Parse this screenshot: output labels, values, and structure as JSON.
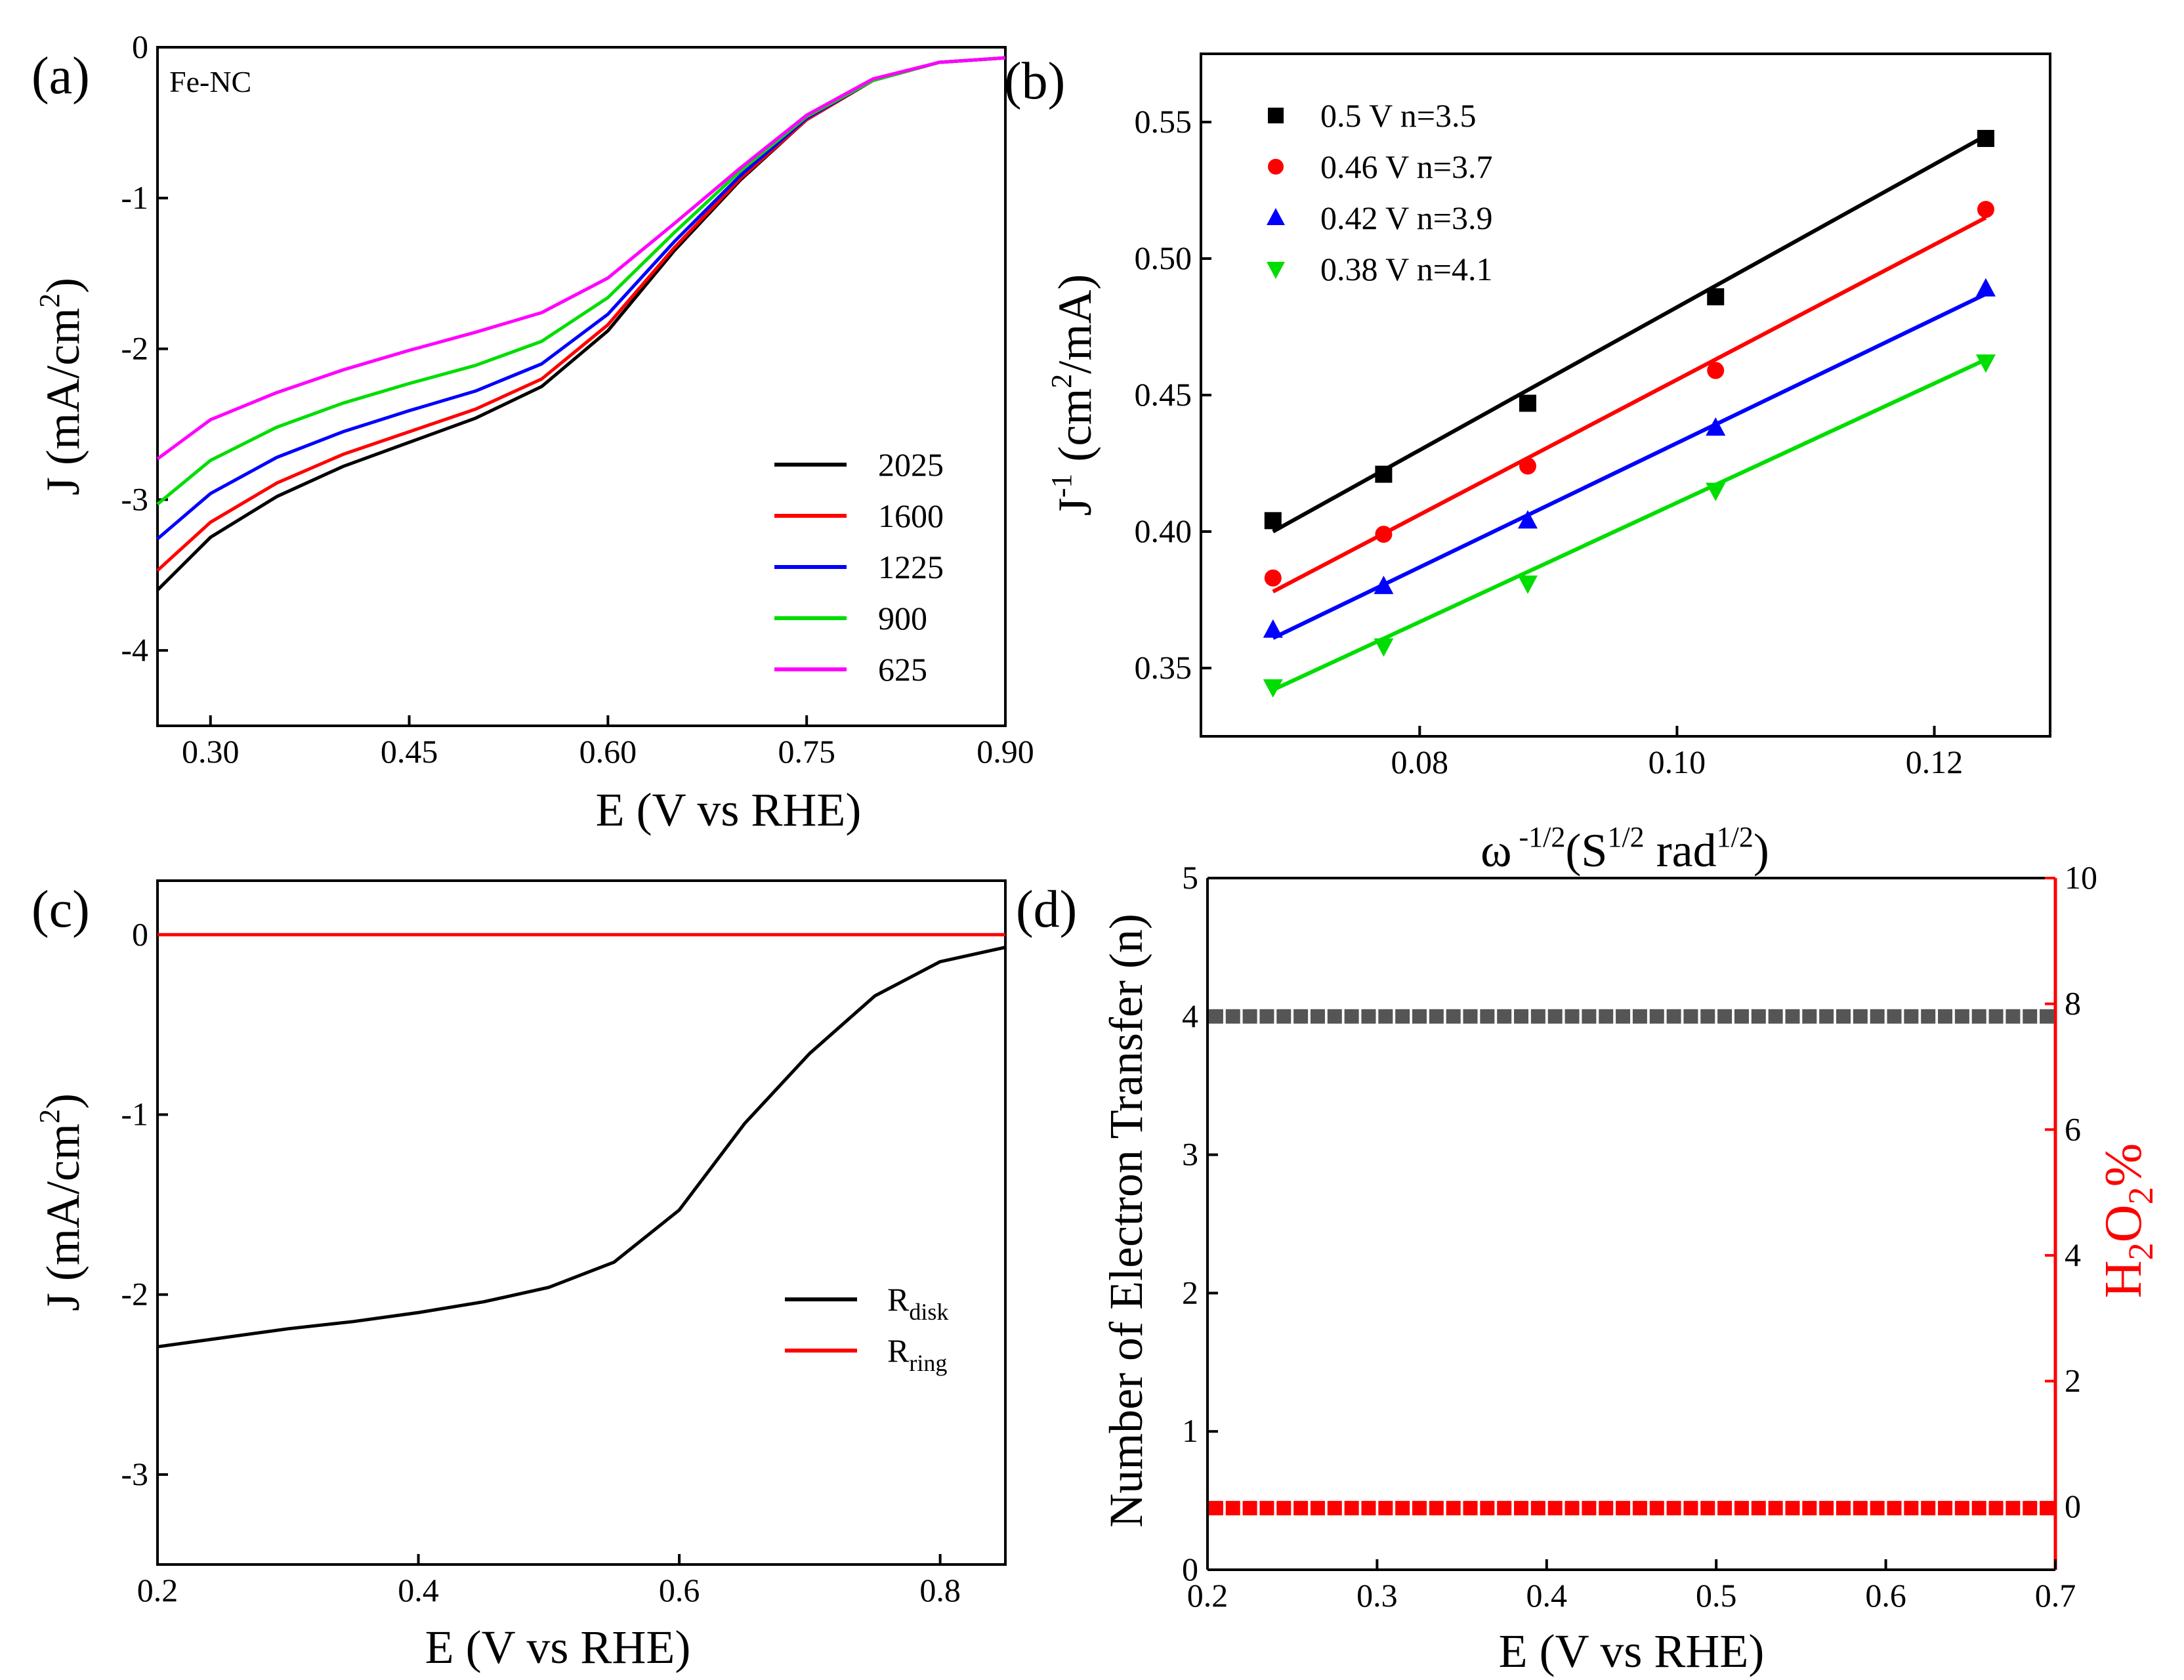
{
  "chart_data": [
    {
      "panel": "(a)",
      "type": "line",
      "annotation": "Fe-NC",
      "xlabel": "E (V vs RHE)",
      "ylabel_main": "J (mA/cm",
      "ylabel_sup": "2",
      "ylabel_end": ")",
      "xlim": [
        0.26,
        0.9
      ],
      "ylim": [
        -4.5,
        0
      ],
      "xticks": [
        0.3,
        0.45,
        0.6,
        0.75,
        0.9
      ],
      "xtick_labels": [
        "0.30",
        "0.45",
        "0.60",
        "0.75",
        "0.90"
      ],
      "yticks": [
        0,
        -1,
        -2,
        -3,
        -4
      ],
      "ytick_labels": [
        "0",
        "-1",
        "-2",
        "-3",
        "-4"
      ],
      "legend_position": "lower-right",
      "x": [
        0.26,
        0.3,
        0.35,
        0.4,
        0.45,
        0.5,
        0.55,
        0.6,
        0.65,
        0.7,
        0.75,
        0.8,
        0.85,
        0.9
      ],
      "series": [
        {
          "name": "2025",
          "color": "#000000",
          "values": [
            -3.6,
            -3.25,
            -2.98,
            -2.78,
            -2.62,
            -2.46,
            -2.25,
            -1.88,
            -1.35,
            -0.88,
            -0.48,
            -0.22,
            -0.1,
            -0.07
          ]
        },
        {
          "name": "1600",
          "color": "#ff0000",
          "values": [
            -3.47,
            -3.15,
            -2.89,
            -2.7,
            -2.55,
            -2.4,
            -2.2,
            -1.84,
            -1.33,
            -0.87,
            -0.48,
            -0.22,
            -0.1,
            -0.07
          ]
        },
        {
          "name": "1225",
          "color": "#0000ff",
          "values": [
            -3.26,
            -2.96,
            -2.72,
            -2.55,
            -2.41,
            -2.28,
            -2.1,
            -1.77,
            -1.29,
            -0.85,
            -0.47,
            -0.22,
            -0.1,
            -0.07
          ]
        },
        {
          "name": "900",
          "color": "#00dd00",
          "values": [
            -3.03,
            -2.74,
            -2.52,
            -2.36,
            -2.23,
            -2.11,
            -1.95,
            -1.66,
            -1.23,
            -0.82,
            -0.46,
            -0.22,
            -0.1,
            -0.07
          ]
        },
        {
          "name": "625",
          "color": "#ff00ff",
          "values": [
            -2.73,
            -2.47,
            -2.29,
            -2.14,
            -2.01,
            -1.89,
            -1.76,
            -1.53,
            -1.17,
            -0.8,
            -0.45,
            -0.21,
            -0.1,
            -0.07
          ]
        }
      ]
    },
    {
      "panel": "(b)",
      "type": "scatter",
      "xlabel_main": "ω",
      "xlabel_sup1": " -1/2",
      "xlabel_mid": "(S",
      "xlabel_sup2": "1/2",
      "xlabel_mid2": " rad",
      "xlabel_sup3": "1/2",
      "xlabel_end": ")",
      "ylabel_main": "J",
      "ylabel_sup1": "-1",
      "ylabel_mid": " (cm",
      "ylabel_sup2": "2",
      "ylabel_end": "/mA)",
      "xlim": [
        0.063,
        0.129
      ],
      "ylim": [
        0.325,
        0.575
      ],
      "xticks": [
        0.08,
        0.1,
        0.12
      ],
      "xtick_labels": [
        "0.08",
        "0.10",
        "0.12"
      ],
      "yticks": [
        0.35,
        0.4,
        0.45,
        0.5,
        0.55
      ],
      "ytick_labels": [
        "0.35",
        "0.40",
        "0.45",
        "0.50",
        "0.55"
      ],
      "legend_position": "top-left",
      "x": [
        0.0686,
        0.0772,
        0.0884,
        0.103,
        0.124
      ],
      "series": [
        {
          "name": "0.5 V n=3.5",
          "color": "#000000",
          "marker": "square",
          "values": [
            0.404,
            0.421,
            0.447,
            0.486,
            0.544
          ],
          "fit": [
            0.4,
            0.545
          ]
        },
        {
          "name": "0.46 V n=3.7",
          "color": "#ff0000",
          "marker": "circle",
          "values": [
            0.383,
            0.399,
            0.424,
            0.459,
            0.518
          ],
          "fit": [
            0.378,
            0.515
          ]
        },
        {
          "name": "0.42 V n=3.9",
          "color": "#0000ff",
          "marker": "triangle-up",
          "values": [
            0.364,
            0.38,
            0.404,
            0.438,
            0.489
          ],
          "fit": [
            0.361,
            0.487
          ]
        },
        {
          "name": "0.38 V n=4.1",
          "color": "#00dd00",
          "marker": "triangle-down",
          "values": [
            0.343,
            0.358,
            0.381,
            0.415,
            0.462
          ],
          "fit": [
            0.342,
            0.463
          ]
        }
      ]
    },
    {
      "panel": "(c)",
      "type": "line",
      "xlabel": "E (V vs RHE)",
      "ylabel_main": "J (mA/cm",
      "ylabel_sup": "2",
      "ylabel_end": ")",
      "xlim": [
        0.2,
        0.85
      ],
      "ylim": [
        -3.5,
        0.3
      ],
      "xticks": [
        0.2,
        0.4,
        0.6,
        0.8
      ],
      "xtick_labels": [
        "0.2",
        "0.4",
        "0.6",
        "0.8"
      ],
      "yticks": [
        0,
        -1,
        -2,
        -3
      ],
      "ytick_labels": [
        "0",
        "-1",
        "-2",
        "-3"
      ],
      "legend_position": "lower-right",
      "x": [
        0.2,
        0.25,
        0.3,
        0.35,
        0.4,
        0.45,
        0.5,
        0.55,
        0.6,
        0.65,
        0.7,
        0.75,
        0.8,
        0.85
      ],
      "series": [
        {
          "name": "R",
          "subscript": "disk",
          "color": "#000000",
          "values": [
            -2.29,
            -2.24,
            -2.19,
            -2.15,
            -2.1,
            -2.04,
            -1.96,
            -1.82,
            -1.53,
            -1.05,
            -0.66,
            -0.34,
            -0.15,
            -0.07
          ]
        },
        {
          "name": "R",
          "subscript": "ring",
          "color": "#ff0000",
          "values": [
            0,
            0,
            0,
            0,
            0,
            0,
            0,
            0,
            0,
            0,
            0,
            0,
            0,
            0
          ]
        }
      ]
    },
    {
      "panel": "(d)",
      "type": "scatter",
      "xlabel": "E (V vs RHE)",
      "ylabel_left": "Number of  Electron Transfer (n)",
      "ylabel_right_parts": [
        "H",
        "2",
        "O",
        "2",
        "%"
      ],
      "right_axis_color": "#ff0000",
      "xlim": [
        0.2,
        0.7
      ],
      "ylim_left": [
        0,
        5
      ],
      "ylim_right": [
        -1,
        10
      ],
      "xticks": [
        0.2,
        0.3,
        0.4,
        0.5,
        0.6,
        0.7
      ],
      "xtick_labels": [
        "0.2",
        "0.3",
        "0.4",
        "0.5",
        "0.6",
        "0.7"
      ],
      "yticks_left": [
        0,
        1,
        2,
        3,
        4,
        5
      ],
      "ytick_labels_left": [
        "0",
        "1",
        "2",
        "3",
        "4",
        "5"
      ],
      "yticks_right": [
        0,
        2,
        4,
        6,
        8,
        10
      ],
      "ytick_labels_right": [
        "0",
        "2",
        "4",
        "6",
        "8",
        "10"
      ],
      "series": [
        {
          "name": "n",
          "axis": "left",
          "color": "#555555",
          "x_start": 0.205,
          "x_end": 0.695,
          "count": 50,
          "value": 4.0
        },
        {
          "name": "H2O2%",
          "axis": "right",
          "color": "#ff0000",
          "x_start": 0.205,
          "x_end": 0.695,
          "count": 50,
          "value": -0.02
        }
      ]
    }
  ]
}
